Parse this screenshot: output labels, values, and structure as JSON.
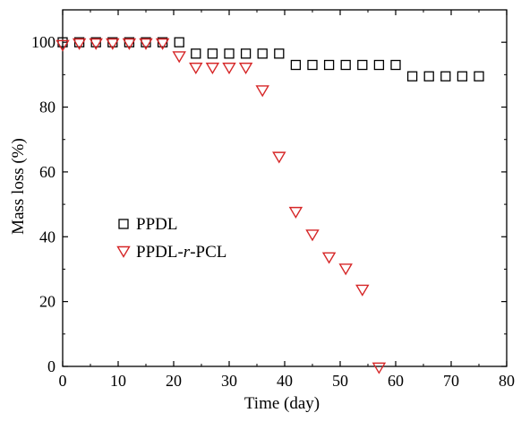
{
  "chart_data": {
    "type": "scatter",
    "xlabel": "Time (day)",
    "ylabel": "Mass loss (%)",
    "xlim": [
      0,
      80
    ],
    "ylim": [
      0,
      110
    ],
    "xticks": [
      0,
      10,
      20,
      30,
      40,
      50,
      60,
      70,
      80
    ],
    "yticks": [
      0,
      20,
      40,
      60,
      80,
      100
    ],
    "grid": false,
    "legend_position": "center-left",
    "series": [
      {
        "name": "PPDL",
        "marker": "square",
        "color": "#000000",
        "x": [
          0,
          3,
          6,
          9,
          12,
          15,
          18,
          21,
          24,
          27,
          30,
          33,
          36,
          39,
          42,
          45,
          48,
          51,
          54,
          57,
          60,
          63,
          66,
          69,
          72,
          75
        ],
        "y": [
          100,
          100,
          100,
          100,
          100,
          100,
          100,
          100,
          96.5,
          96.5,
          96.5,
          96.5,
          96.5,
          96.5,
          93,
          93,
          93,
          93,
          93,
          93,
          93,
          89.5,
          89.5,
          89.5,
          89.5,
          89.5
        ]
      },
      {
        "name": "PPDL-r-PCL",
        "marker": "triangle-down",
        "color": "#d62728",
        "x": [
          0,
          3,
          6,
          9,
          12,
          15,
          18,
          21,
          24,
          27,
          30,
          33,
          36,
          39,
          42,
          45,
          48,
          51,
          54,
          57
        ],
        "y": [
          99,
          99.5,
          99.5,
          99.5,
          99.5,
          99.5,
          99.5,
          95.5,
          92,
          92,
          92,
          92,
          85,
          64.5,
          47.5,
          40.5,
          33.5,
          30,
          23.5,
          -0.5
        ]
      }
    ],
    "legend": {
      "entries": [
        {
          "label_pre": "PPDL",
          "label_italic": "",
          "label_post": ""
        },
        {
          "label_pre": "PPDL-",
          "label_italic": "r",
          "label_post": "-PCL"
        }
      ]
    }
  }
}
